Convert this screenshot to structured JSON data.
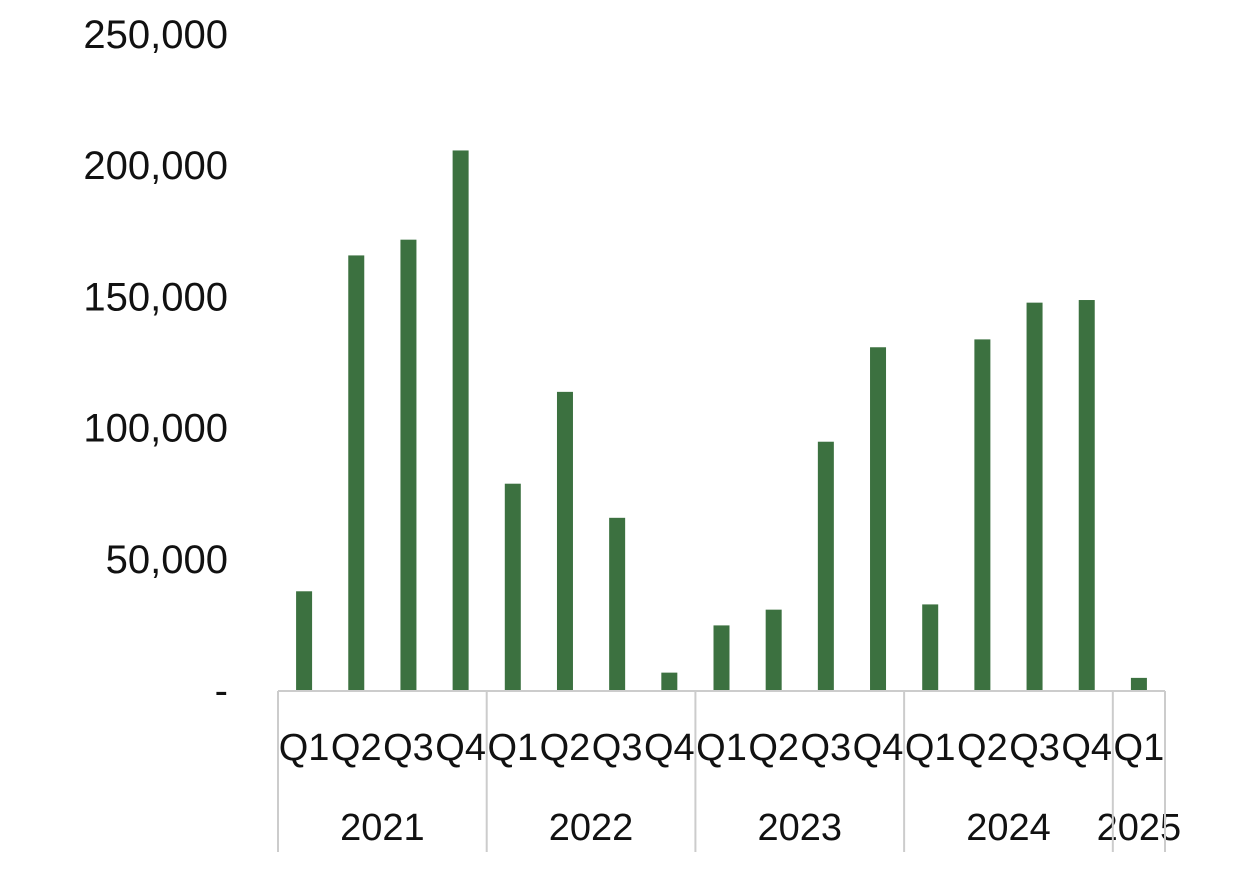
{
  "chart_data": {
    "type": "bar",
    "categories": [
      {
        "quarter": "Q1",
        "year": "2021"
      },
      {
        "quarter": "Q2",
        "year": "2021"
      },
      {
        "quarter": "Q3",
        "year": "2021"
      },
      {
        "quarter": "Q4",
        "year": "2021"
      },
      {
        "quarter": "Q1",
        "year": "2022"
      },
      {
        "quarter": "Q2",
        "year": "2022"
      },
      {
        "quarter": "Q3",
        "year": "2022"
      },
      {
        "quarter": "Q4",
        "year": "2022"
      },
      {
        "quarter": "Q1",
        "year": "2023"
      },
      {
        "quarter": "Q2",
        "year": "2023"
      },
      {
        "quarter": "Q3",
        "year": "2023"
      },
      {
        "quarter": "Q4",
        "year": "2023"
      },
      {
        "quarter": "Q1",
        "year": "2024"
      },
      {
        "quarter": "Q2",
        "year": "2024"
      },
      {
        "quarter": "Q3",
        "year": "2024"
      },
      {
        "quarter": "Q4",
        "year": "2024"
      },
      {
        "quarter": "Q1",
        "year": "2025"
      }
    ],
    "years": [
      "2021",
      "2022",
      "2023",
      "2024",
      "2025"
    ],
    "values": [
      38000,
      166000,
      172000,
      206000,
      79000,
      114000,
      66000,
      7000,
      25000,
      31000,
      95000,
      131000,
      33000,
      134000,
      148000,
      149000,
      5000
    ],
    "ylim": [
      0,
      250000
    ],
    "yticks": [
      0,
      50000,
      100000,
      150000,
      200000,
      250000
    ],
    "ytick_labels": [
      "-",
      "50,000",
      "100,000",
      "150,000",
      "200,000",
      "250,000"
    ],
    "title": "",
    "xlabel": "",
    "ylabel": "",
    "grid": false,
    "bar_color": "#3c7140",
    "axis_color": "#cccccc"
  }
}
